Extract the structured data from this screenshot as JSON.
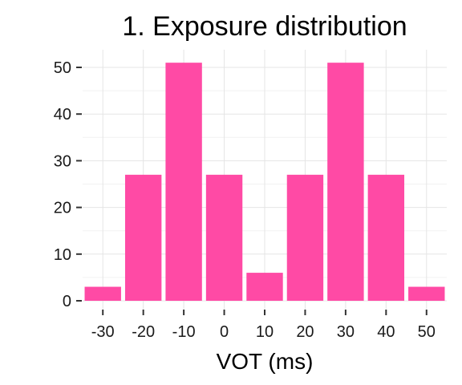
{
  "chart_data": {
    "type": "bar",
    "title": "1. Exposure distribution",
    "xlabel": "VOT (ms)",
    "ylabel": "",
    "categories": [
      "-30",
      "-20",
      "-10",
      "0",
      "10",
      "20",
      "30",
      "40",
      "50"
    ],
    "x": [
      -30,
      -20,
      -10,
      0,
      10,
      20,
      30,
      40,
      50
    ],
    "values": [
      3,
      27,
      51,
      27,
      6,
      27,
      51,
      27,
      3
    ],
    "ylim": [
      0,
      54
    ],
    "y_ticks": [
      0,
      10,
      20,
      30,
      40,
      50
    ],
    "y_tick_labels": [
      "0",
      "10",
      "20",
      "30",
      "40",
      "50"
    ],
    "grid": true,
    "legend": "none",
    "bar_color": "#ff4aa5"
  }
}
